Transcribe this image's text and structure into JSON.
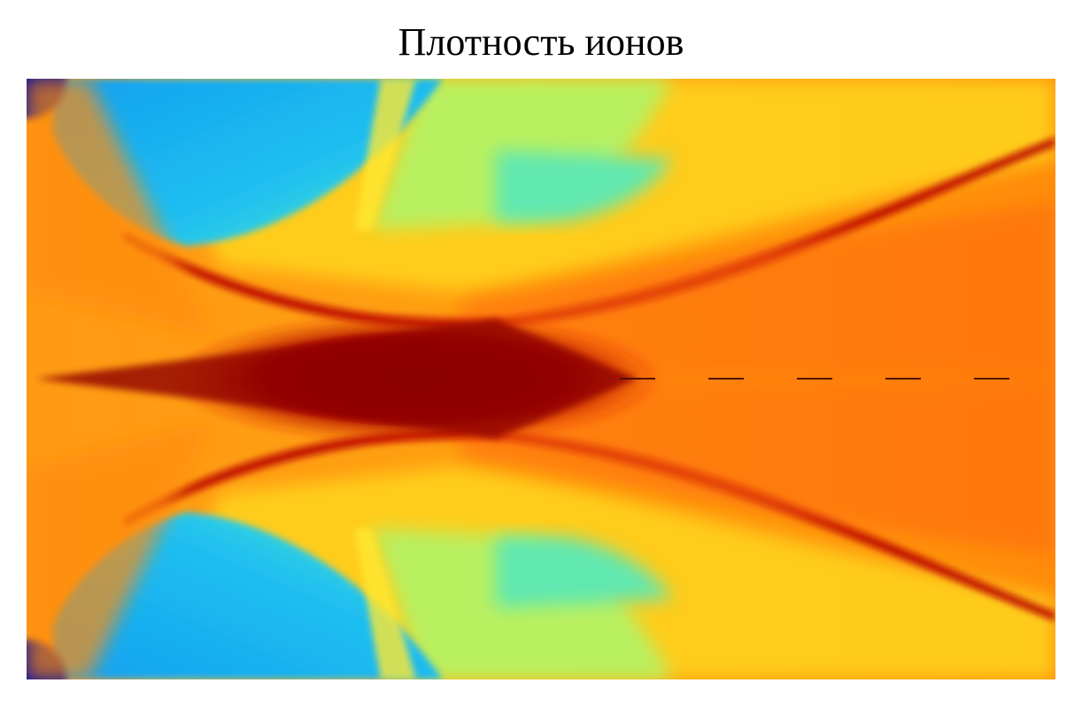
{
  "chart_data": {
    "type": "heatmap",
    "title": "Плотность ионов"
  }
}
